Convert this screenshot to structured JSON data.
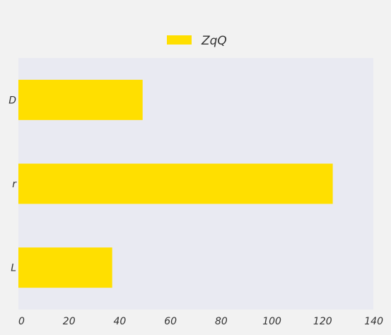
{
  "chart_data": {
    "type": "bar",
    "orientation": "horizontal",
    "categories": [
      "D",
      "r",
      "L"
    ],
    "series": [
      {
        "name": "ZqQ",
        "values": [
          49,
          124,
          37
        ]
      }
    ],
    "title": "",
    "xlabel": "",
    "ylabel": "",
    "xlim": [
      0,
      140
    ],
    "xticks": [
      0,
      20,
      40,
      60,
      80,
      100,
      120,
      140
    ],
    "grid": false,
    "legend": "top-center",
    "colors": {
      "bar": "#ffdf00",
      "plot_background": "#e9eaf2",
      "figure_background": "#f2f2f2",
      "text": "#333333"
    }
  }
}
